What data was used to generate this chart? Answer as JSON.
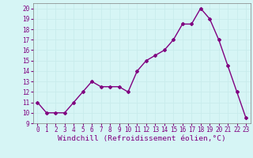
{
  "x": [
    0,
    1,
    2,
    3,
    4,
    5,
    6,
    7,
    8,
    9,
    10,
    11,
    12,
    13,
    14,
    15,
    16,
    17,
    18,
    19,
    20,
    21,
    22,
    23
  ],
  "y": [
    11,
    10,
    10,
    10,
    11,
    12,
    13,
    12.5,
    12.5,
    12.5,
    12,
    14,
    15,
    15.5,
    16,
    17,
    18.5,
    18.5,
    20,
    19,
    17,
    14.5,
    12,
    9.5
  ],
  "line_color": "#800080",
  "marker": "D",
  "marker_size": 2.0,
  "bg_color": "#d6f5f5",
  "grid_color": "#b0e0e0",
  "xlabel": "Windchill (Refroidissement éolien,°C)",
  "xlabel_color": "#800080",
  "tick_color": "#800080",
  "ylim": [
    9,
    20.5
  ],
  "yticks": [
    9,
    10,
    11,
    12,
    13,
    14,
    15,
    16,
    17,
    18,
    19,
    20
  ],
  "xticks": [
    0,
    1,
    2,
    3,
    4,
    5,
    6,
    7,
    8,
    9,
    10,
    11,
    12,
    13,
    14,
    15,
    16,
    17,
    18,
    19,
    20,
    21,
    22,
    23
  ],
  "tick_fontsize": 5.5,
  "xlabel_fontsize": 6.8,
  "linewidth": 1.0
}
